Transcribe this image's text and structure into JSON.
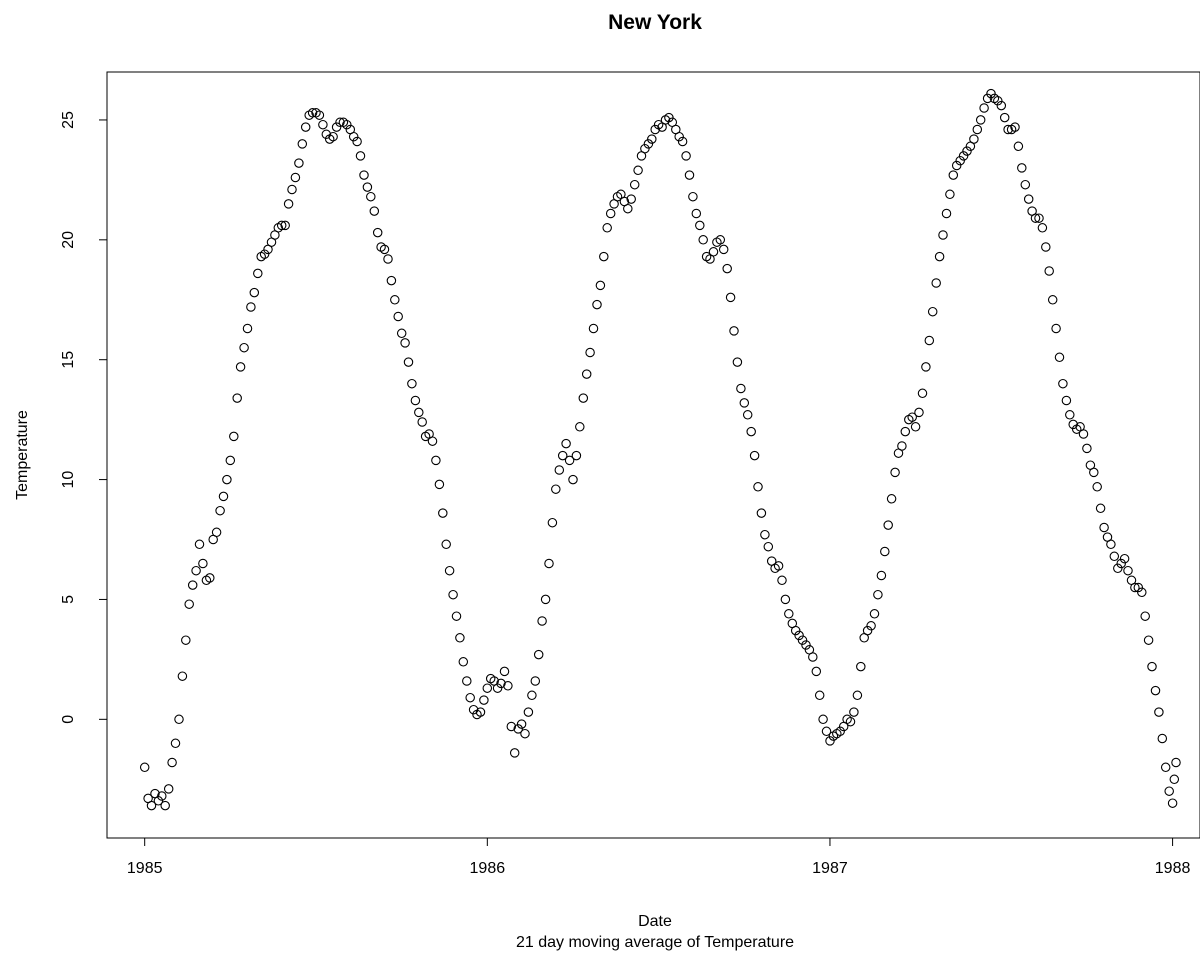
{
  "chart_data": {
    "type": "scatter",
    "title": "New York",
    "xlabel": "Date",
    "ylabel": "Temperature",
    "subtitle": "21 day moving average of Temperature",
    "x_ticks": [
      "1985",
      "1986",
      "1987",
      "1988"
    ],
    "x_tick_values": [
      1985,
      1986,
      1987,
      1988
    ],
    "y_ticks": [
      "0",
      "5",
      "10",
      "15",
      "20",
      "25"
    ],
    "y_tick_values": [
      0,
      5,
      10,
      15,
      20,
      25
    ],
    "xlim": [
      1984.89,
      1988.08
    ],
    "ylim": [
      -4.95,
      27.0
    ],
    "grid": false,
    "marker": "open-circle",
    "x_units": "year",
    "series": [
      {
        "points": [
          [
            1985.0,
            -2.0
          ],
          [
            1985.01,
            -3.3
          ],
          [
            1985.02,
            -3.6
          ],
          [
            1985.03,
            -3.1
          ],
          [
            1985.04,
            -3.4
          ],
          [
            1985.05,
            -3.2
          ],
          [
            1985.06,
            -3.6
          ],
          [
            1985.07,
            -2.9
          ],
          [
            1985.08,
            -1.8
          ],
          [
            1985.09,
            -1.0
          ],
          [
            1985.1,
            0.0
          ],
          [
            1985.11,
            1.8
          ],
          [
            1985.12,
            3.3
          ],
          [
            1985.13,
            4.8
          ],
          [
            1985.14,
            5.6
          ],
          [
            1985.15,
            6.2
          ],
          [
            1985.16,
            7.3
          ],
          [
            1985.17,
            6.5
          ],
          [
            1985.18,
            5.8
          ],
          [
            1985.19,
            5.9
          ],
          [
            1985.2,
            7.5
          ],
          [
            1985.21,
            7.8
          ],
          [
            1985.22,
            8.7
          ],
          [
            1985.23,
            9.3
          ],
          [
            1985.24,
            10.0
          ],
          [
            1985.25,
            10.8
          ],
          [
            1985.26,
            11.8
          ],
          [
            1985.27,
            13.4
          ],
          [
            1985.28,
            14.7
          ],
          [
            1985.29,
            15.5
          ],
          [
            1985.3,
            16.3
          ],
          [
            1985.31,
            17.2
          ],
          [
            1985.32,
            17.8
          ],
          [
            1985.33,
            18.6
          ],
          [
            1985.34,
            19.3
          ],
          [
            1985.35,
            19.4
          ],
          [
            1985.36,
            19.6
          ],
          [
            1985.37,
            19.9
          ],
          [
            1985.38,
            20.2
          ],
          [
            1985.39,
            20.5
          ],
          [
            1985.4,
            20.6
          ],
          [
            1985.41,
            20.6
          ],
          [
            1985.42,
            21.5
          ],
          [
            1985.43,
            22.1
          ],
          [
            1985.44,
            22.6
          ],
          [
            1985.45,
            23.2
          ],
          [
            1985.46,
            24.0
          ],
          [
            1985.47,
            24.7
          ],
          [
            1985.48,
            25.2
          ],
          [
            1985.49,
            25.3
          ],
          [
            1985.5,
            25.3
          ],
          [
            1985.51,
            25.2
          ],
          [
            1985.52,
            24.8
          ],
          [
            1985.53,
            24.4
          ],
          [
            1985.54,
            24.2
          ],
          [
            1985.55,
            24.3
          ],
          [
            1985.56,
            24.7
          ],
          [
            1985.57,
            24.9
          ],
          [
            1985.58,
            24.9
          ],
          [
            1985.59,
            24.8
          ],
          [
            1985.6,
            24.6
          ],
          [
            1985.61,
            24.3
          ],
          [
            1985.62,
            24.1
          ],
          [
            1985.63,
            23.5
          ],
          [
            1985.64,
            22.7
          ],
          [
            1985.65,
            22.2
          ],
          [
            1985.66,
            21.8
          ],
          [
            1985.67,
            21.2
          ],
          [
            1985.68,
            20.3
          ],
          [
            1985.69,
            19.7
          ],
          [
            1985.7,
            19.6
          ],
          [
            1985.71,
            19.2
          ],
          [
            1985.72,
            18.3
          ],
          [
            1985.73,
            17.5
          ],
          [
            1985.74,
            16.8
          ],
          [
            1985.75,
            16.1
          ],
          [
            1985.76,
            15.7
          ],
          [
            1985.77,
            14.9
          ],
          [
            1985.78,
            14.0
          ],
          [
            1985.79,
            13.3
          ],
          [
            1985.8,
            12.8
          ],
          [
            1985.81,
            12.4
          ],
          [
            1985.82,
            11.8
          ],
          [
            1985.83,
            11.9
          ],
          [
            1985.84,
            11.6
          ],
          [
            1985.85,
            10.8
          ],
          [
            1985.86,
            9.8
          ],
          [
            1985.87,
            8.6
          ],
          [
            1985.88,
            7.3
          ],
          [
            1985.89,
            6.2
          ],
          [
            1985.9,
            5.2
          ],
          [
            1985.91,
            4.3
          ],
          [
            1985.92,
            3.4
          ],
          [
            1985.93,
            2.4
          ],
          [
            1985.94,
            1.6
          ],
          [
            1985.95,
            0.9
          ],
          [
            1985.96,
            0.4
          ],
          [
            1985.97,
            0.2
          ],
          [
            1985.98,
            0.3
          ],
          [
            1985.99,
            0.8
          ],
          [
            1986.0,
            1.3
          ],
          [
            1986.01,
            1.7
          ],
          [
            1986.02,
            1.6
          ],
          [
            1986.03,
            1.3
          ],
          [
            1986.04,
            1.5
          ],
          [
            1986.05,
            2.0
          ],
          [
            1986.06,
            1.4
          ],
          [
            1986.07,
            -0.3
          ],
          [
            1986.08,
            -1.4
          ],
          [
            1986.09,
            -0.4
          ],
          [
            1986.1,
            -0.2
          ],
          [
            1986.11,
            -0.6
          ],
          [
            1986.12,
            0.3
          ],
          [
            1986.13,
            1.0
          ],
          [
            1986.14,
            1.6
          ],
          [
            1986.15,
            2.7
          ],
          [
            1986.16,
            4.1
          ],
          [
            1986.17,
            5.0
          ],
          [
            1986.18,
            6.5
          ],
          [
            1986.19,
            8.2
          ],
          [
            1986.2,
            9.6
          ],
          [
            1986.21,
            10.4
          ],
          [
            1986.22,
            11.0
          ],
          [
            1986.23,
            11.5
          ],
          [
            1986.24,
            10.8
          ],
          [
            1986.25,
            10.0
          ],
          [
            1986.26,
            11.0
          ],
          [
            1986.27,
            12.2
          ],
          [
            1986.28,
            13.4
          ],
          [
            1986.29,
            14.4
          ],
          [
            1986.3,
            15.3
          ],
          [
            1986.31,
            16.3
          ],
          [
            1986.32,
            17.3
          ],
          [
            1986.33,
            18.1
          ],
          [
            1986.34,
            19.3
          ],
          [
            1986.35,
            20.5
          ],
          [
            1986.36,
            21.1
          ],
          [
            1986.37,
            21.5
          ],
          [
            1986.38,
            21.8
          ],
          [
            1986.39,
            21.9
          ],
          [
            1986.4,
            21.6
          ],
          [
            1986.41,
            21.3
          ],
          [
            1986.42,
            21.7
          ],
          [
            1986.43,
            22.3
          ],
          [
            1986.44,
            22.9
          ],
          [
            1986.45,
            23.5
          ],
          [
            1986.46,
            23.8
          ],
          [
            1986.47,
            24.0
          ],
          [
            1986.48,
            24.2
          ],
          [
            1986.49,
            24.6
          ],
          [
            1986.5,
            24.8
          ],
          [
            1986.51,
            24.7
          ],
          [
            1986.52,
            25.0
          ],
          [
            1986.53,
            25.1
          ],
          [
            1986.54,
            24.9
          ],
          [
            1986.55,
            24.6
          ],
          [
            1986.56,
            24.3
          ],
          [
            1986.57,
            24.1
          ],
          [
            1986.58,
            23.5
          ],
          [
            1986.59,
            22.7
          ],
          [
            1986.6,
            21.8
          ],
          [
            1986.61,
            21.1
          ],
          [
            1986.62,
            20.6
          ],
          [
            1986.63,
            20.0
          ],
          [
            1986.64,
            19.3
          ],
          [
            1986.65,
            19.2
          ],
          [
            1986.66,
            19.5
          ],
          [
            1986.67,
            19.9
          ],
          [
            1986.68,
            20.0
          ],
          [
            1986.69,
            19.6
          ],
          [
            1986.7,
            18.8
          ],
          [
            1986.71,
            17.6
          ],
          [
            1986.72,
            16.2
          ],
          [
            1986.73,
            14.9
          ],
          [
            1986.74,
            13.8
          ],
          [
            1986.75,
            13.2
          ],
          [
            1986.76,
            12.7
          ],
          [
            1986.77,
            12.0
          ],
          [
            1986.78,
            11.0
          ],
          [
            1986.79,
            9.7
          ],
          [
            1986.8,
            8.6
          ],
          [
            1986.81,
            7.7
          ],
          [
            1986.82,
            7.2
          ],
          [
            1986.83,
            6.6
          ],
          [
            1986.84,
            6.3
          ],
          [
            1986.85,
            6.4
          ],
          [
            1986.86,
            5.8
          ],
          [
            1986.87,
            5.0
          ],
          [
            1986.88,
            4.4
          ],
          [
            1986.89,
            4.0
          ],
          [
            1986.9,
            3.7
          ],
          [
            1986.91,
            3.5
          ],
          [
            1986.92,
            3.3
          ],
          [
            1986.93,
            3.1
          ],
          [
            1986.94,
            2.9
          ],
          [
            1986.95,
            2.6
          ],
          [
            1986.96,
            2.0
          ],
          [
            1986.97,
            1.0
          ],
          [
            1986.98,
            0.0
          ],
          [
            1986.99,
            -0.5
          ],
          [
            1987.0,
            -0.9
          ],
          [
            1987.01,
            -0.7
          ],
          [
            1987.02,
            -0.6
          ],
          [
            1987.03,
            -0.5
          ],
          [
            1987.04,
            -0.3
          ],
          [
            1987.05,
            0.0
          ],
          [
            1987.06,
            -0.1
          ],
          [
            1987.07,
            0.3
          ],
          [
            1987.08,
            1.0
          ],
          [
            1987.09,
            2.2
          ],
          [
            1987.1,
            3.4
          ],
          [
            1987.11,
            3.7
          ],
          [
            1987.12,
            3.9
          ],
          [
            1987.13,
            4.4
          ],
          [
            1987.14,
            5.2
          ],
          [
            1987.15,
            6.0
          ],
          [
            1987.16,
            7.0
          ],
          [
            1987.17,
            8.1
          ],
          [
            1987.18,
            9.2
          ],
          [
            1987.19,
            10.3
          ],
          [
            1987.2,
            11.1
          ],
          [
            1987.21,
            11.4
          ],
          [
            1987.22,
            12.0
          ],
          [
            1987.23,
            12.5
          ],
          [
            1987.24,
            12.6
          ],
          [
            1987.25,
            12.2
          ],
          [
            1987.26,
            12.8
          ],
          [
            1987.27,
            13.6
          ],
          [
            1987.28,
            14.7
          ],
          [
            1987.29,
            15.8
          ],
          [
            1987.3,
            17.0
          ],
          [
            1987.31,
            18.2
          ],
          [
            1987.32,
            19.3
          ],
          [
            1987.33,
            20.2
          ],
          [
            1987.34,
            21.1
          ],
          [
            1987.35,
            21.9
          ],
          [
            1987.36,
            22.7
          ],
          [
            1987.37,
            23.1
          ],
          [
            1987.38,
            23.3
          ],
          [
            1987.39,
            23.5
          ],
          [
            1987.4,
            23.7
          ],
          [
            1987.41,
            23.9
          ],
          [
            1987.42,
            24.2
          ],
          [
            1987.43,
            24.6
          ],
          [
            1987.44,
            25.0
          ],
          [
            1987.45,
            25.5
          ],
          [
            1987.46,
            25.9
          ],
          [
            1987.47,
            26.1
          ],
          [
            1987.48,
            25.9
          ],
          [
            1987.49,
            25.8
          ],
          [
            1987.5,
            25.6
          ],
          [
            1987.51,
            25.1
          ],
          [
            1987.52,
            24.6
          ],
          [
            1987.53,
            24.6
          ],
          [
            1987.54,
            24.7
          ],
          [
            1987.55,
            23.9
          ],
          [
            1987.56,
            23.0
          ],
          [
            1987.57,
            22.3
          ],
          [
            1987.58,
            21.7
          ],
          [
            1987.59,
            21.2
          ],
          [
            1987.6,
            20.9
          ],
          [
            1987.61,
            20.9
          ],
          [
            1987.62,
            20.5
          ],
          [
            1987.63,
            19.7
          ],
          [
            1987.64,
            18.7
          ],
          [
            1987.65,
            17.5
          ],
          [
            1987.66,
            16.3
          ],
          [
            1987.67,
            15.1
          ],
          [
            1987.68,
            14.0
          ],
          [
            1987.69,
            13.3
          ],
          [
            1987.7,
            12.7
          ],
          [
            1987.71,
            12.3
          ],
          [
            1987.72,
            12.1
          ],
          [
            1987.73,
            12.2
          ],
          [
            1987.74,
            11.9
          ],
          [
            1987.75,
            11.3
          ],
          [
            1987.76,
            10.6
          ],
          [
            1987.77,
            10.3
          ],
          [
            1987.78,
            9.7
          ],
          [
            1987.79,
            8.8
          ],
          [
            1987.8,
            8.0
          ],
          [
            1987.81,
            7.6
          ],
          [
            1987.82,
            7.3
          ],
          [
            1987.83,
            6.8
          ],
          [
            1987.84,
            6.3
          ],
          [
            1987.85,
            6.5
          ],
          [
            1987.86,
            6.7
          ],
          [
            1987.87,
            6.2
          ],
          [
            1987.88,
            5.8
          ],
          [
            1987.89,
            5.5
          ],
          [
            1987.9,
            5.5
          ],
          [
            1987.91,
            5.3
          ],
          [
            1987.92,
            4.3
          ],
          [
            1987.93,
            3.3
          ],
          [
            1987.94,
            2.2
          ],
          [
            1987.95,
            1.2
          ],
          [
            1987.96,
            0.3
          ],
          [
            1987.97,
            -0.8
          ],
          [
            1987.98,
            -2.0
          ],
          [
            1987.99,
            -3.0
          ],
          [
            1988.0,
            -3.5
          ],
          [
            1988.005,
            -2.5
          ],
          [
            1988.01,
            -1.8
          ]
        ]
      }
    ]
  }
}
